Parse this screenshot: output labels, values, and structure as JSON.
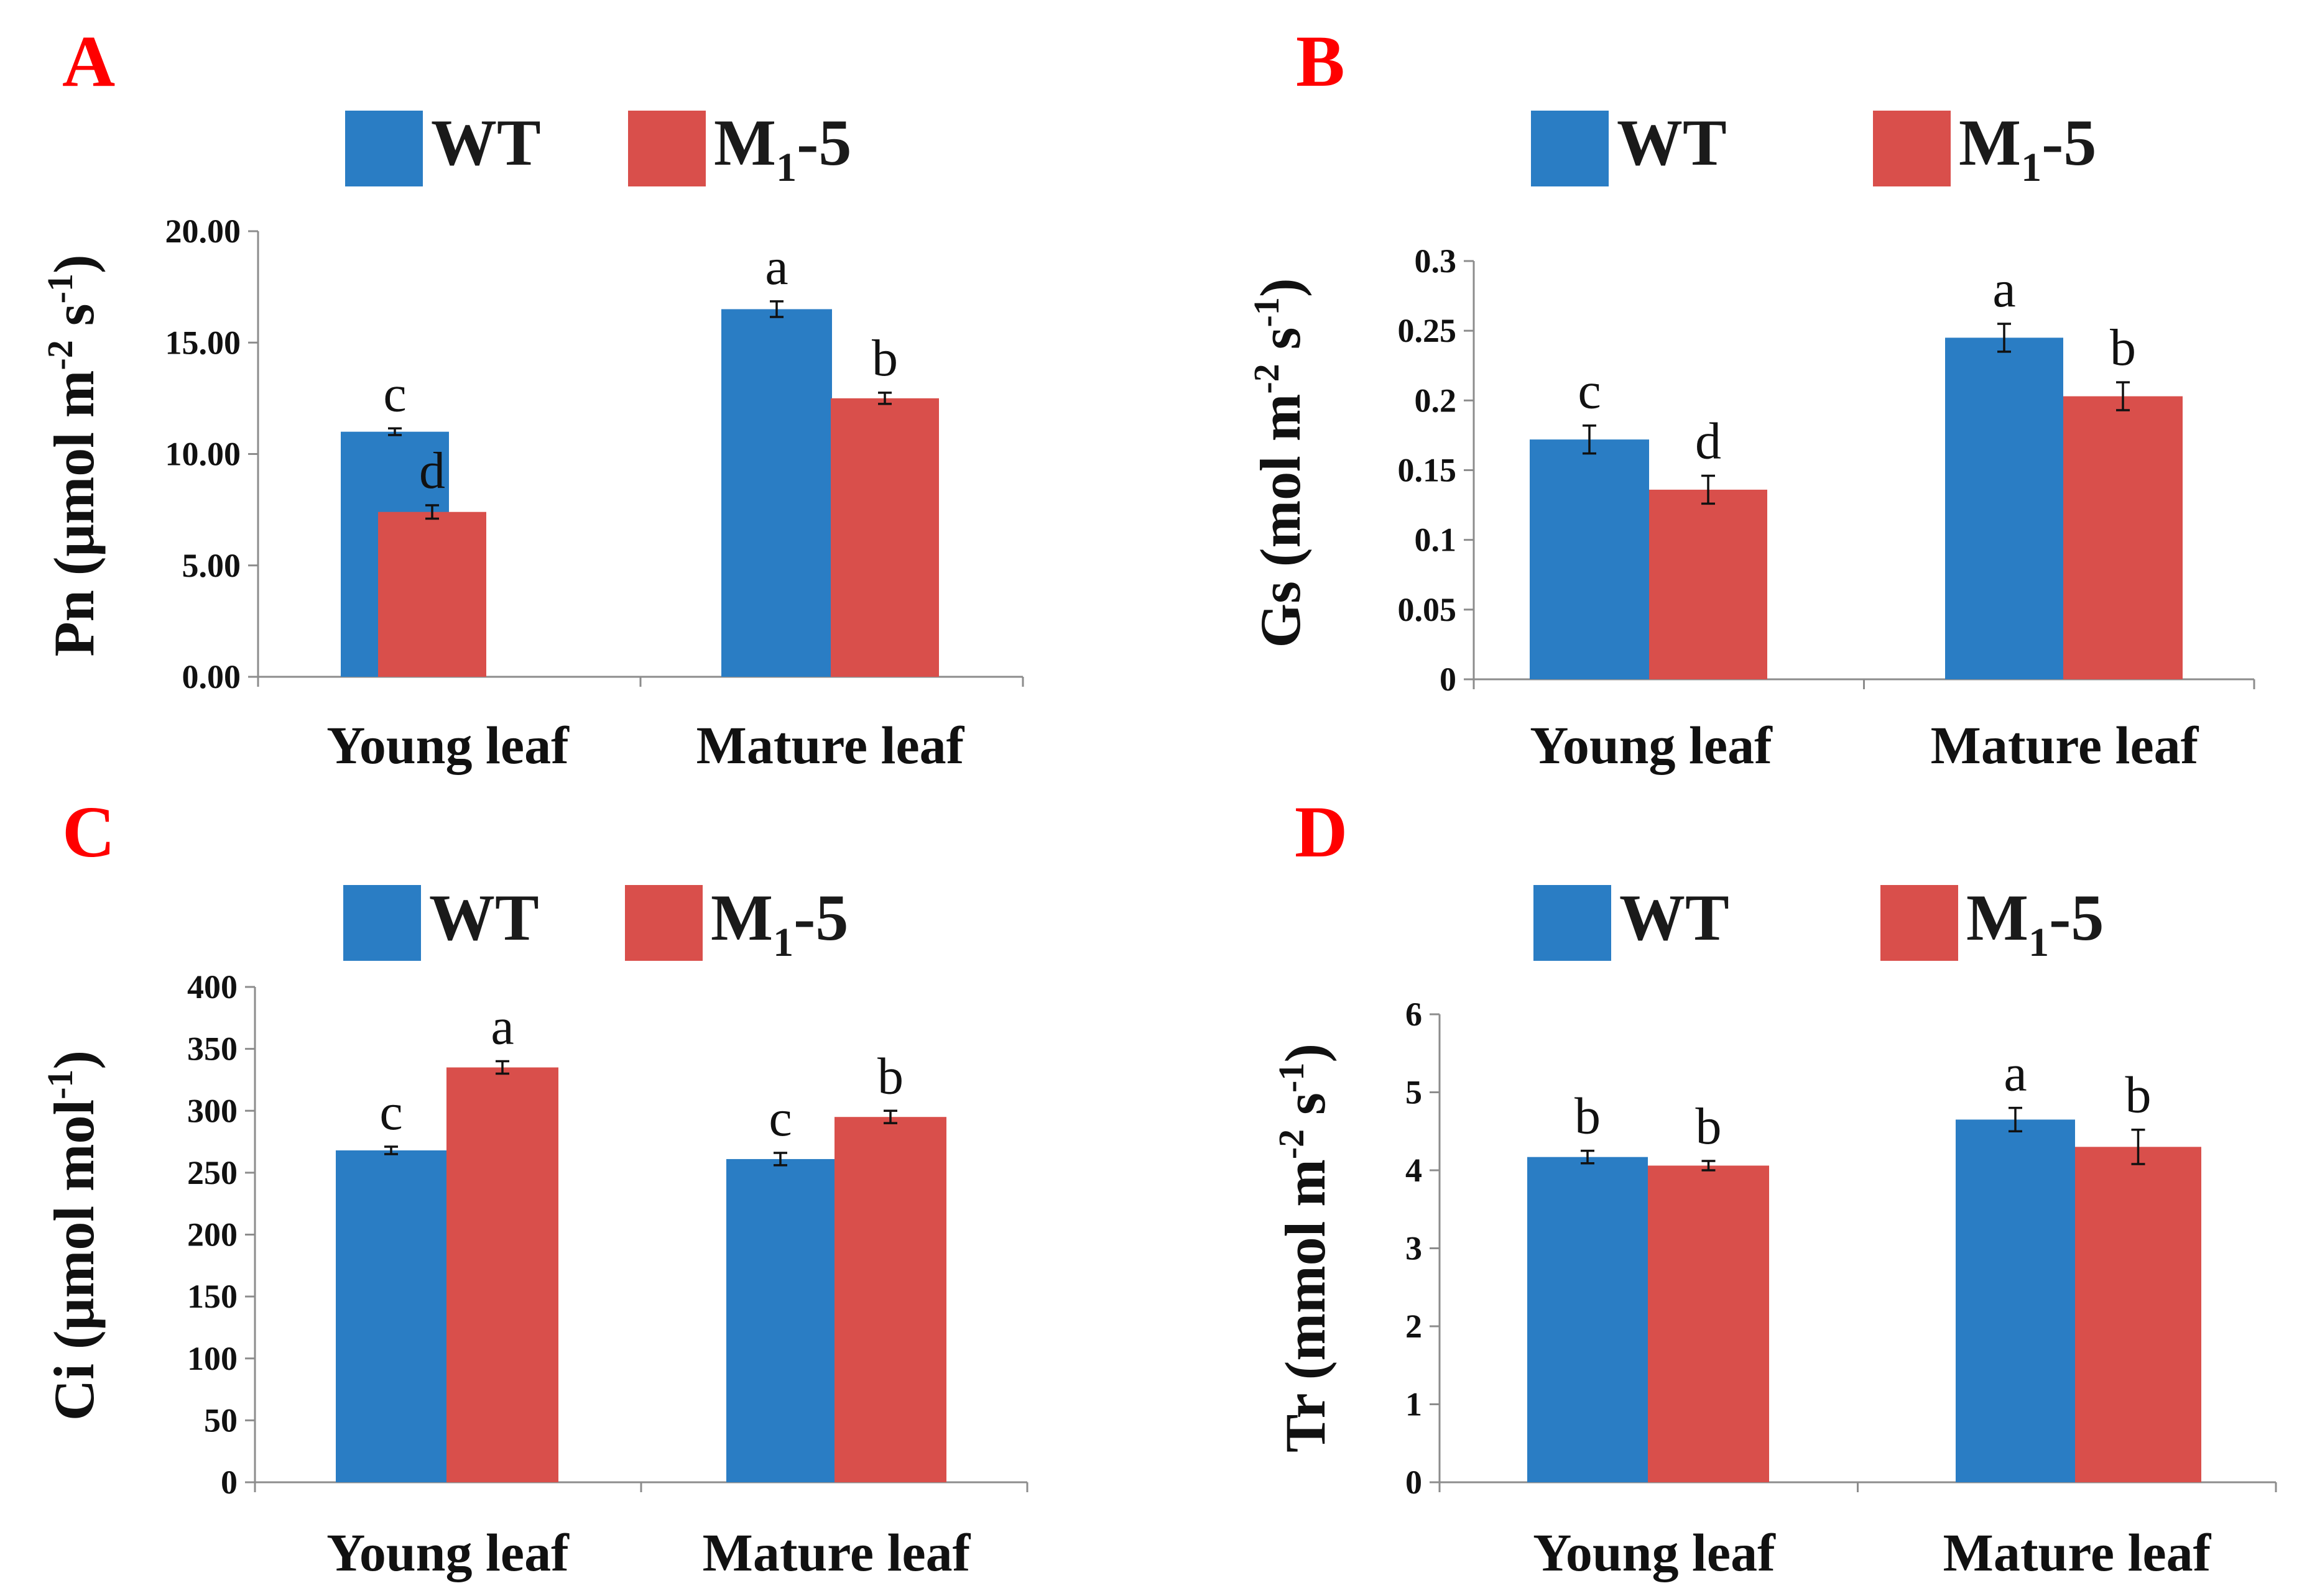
{
  "figure": {
    "legend": {
      "wt": "WT",
      "mutant_main": "M",
      "mutant_sub": "1",
      "mutant_rest": "-5"
    },
    "colors": {
      "wt": "#2a7dc4",
      "mutant": "#d94f4b",
      "letter": "#ff0000"
    }
  },
  "chart_data": [
    {
      "panel": "A",
      "type": "bar",
      "ylabel": {
        "main": "Pn (μmol m",
        "sup1": "-2",
        "mid": " s",
        "sup2": "-1",
        "end": ")"
      },
      "categories": [
        "Young leaf",
        "Mature leaf"
      ],
      "ylim": [
        0,
        20
      ],
      "ticks": [
        0,
        5,
        10,
        15,
        20
      ],
      "tick_labels": [
        "0.00",
        "5.00",
        "10.00",
        "15.00",
        "20.00"
      ],
      "series": [
        {
          "name": "WT",
          "values": [
            11.0,
            16.5
          ],
          "errors": [
            0.15,
            0.35
          ],
          "letters": [
            "c",
            "a"
          ]
        },
        {
          "name": "M1-5",
          "values": [
            7.4,
            12.5
          ],
          "errors": [
            0.3,
            0.25
          ],
          "letters": [
            "d",
            "b"
          ]
        }
      ]
    },
    {
      "panel": "B",
      "type": "bar",
      "ylabel": {
        "main": "Gs (mol m",
        "sup1": "-2",
        "mid": " s",
        "sup2": "-1",
        "end": ")"
      },
      "categories": [
        "Young leaf",
        "Mature leaf"
      ],
      "ylim": [
        0,
        0.3
      ],
      "ticks": [
        0,
        0.05,
        0.1,
        0.15,
        0.2,
        0.25,
        0.3
      ],
      "tick_labels": [
        "0",
        "0.05",
        "0.1",
        "0.15",
        "0.2",
        "0.25",
        "0.3"
      ],
      "series": [
        {
          "name": "WT",
          "values": [
            0.172,
            0.245
          ],
          "errors": [
            0.01,
            0.01
          ],
          "letters": [
            "c",
            "a"
          ]
        },
        {
          "name": "M1-5",
          "values": [
            0.136,
            0.203
          ],
          "errors": [
            0.01,
            0.01
          ],
          "letters": [
            "d",
            "b"
          ]
        }
      ]
    },
    {
      "panel": "C",
      "type": "bar",
      "ylabel": {
        "main": "Ci (μmol mol",
        "sup1": "-1",
        "mid": "",
        "sup2": "",
        "end": ")"
      },
      "categories": [
        "Young leaf",
        "Mature leaf"
      ],
      "ylim": [
        0,
        400
      ],
      "ticks": [
        0,
        50,
        100,
        150,
        200,
        250,
        300,
        350,
        400
      ],
      "tick_labels": [
        "0",
        "50",
        "100",
        "150",
        "200",
        "250",
        "300",
        "350",
        "400"
      ],
      "series": [
        {
          "name": "WT",
          "values": [
            268,
            261
          ],
          "errors": [
            3,
            5
          ],
          "letters": [
            "c",
            "c"
          ]
        },
        {
          "name": "M1-5",
          "values": [
            335,
            295
          ],
          "errors": [
            5,
            5
          ],
          "letters": [
            "a",
            "b"
          ]
        }
      ]
    },
    {
      "panel": "D",
      "type": "bar",
      "ylabel": {
        "main": "Tr (mmol m",
        "sup1": "-2",
        "mid": " s",
        "sup2": "-1",
        "end": ")"
      },
      "categories": [
        "Young leaf",
        "Mature leaf"
      ],
      "ylim": [
        0,
        6
      ],
      "ticks": [
        0,
        1,
        2,
        3,
        4,
        5,
        6
      ],
      "tick_labels": [
        "0",
        "1",
        "2",
        "3",
        "4",
        "5",
        "6"
      ],
      "series": [
        {
          "name": "WT",
          "values": [
            4.17,
            4.65
          ],
          "errors": [
            0.08,
            0.15
          ],
          "letters": [
            "b",
            "a"
          ]
        },
        {
          "name": "M1-5",
          "values": [
            4.06,
            4.3
          ],
          "errors": [
            0.06,
            0.22
          ],
          "letters": [
            "b",
            "b"
          ]
        }
      ]
    }
  ]
}
